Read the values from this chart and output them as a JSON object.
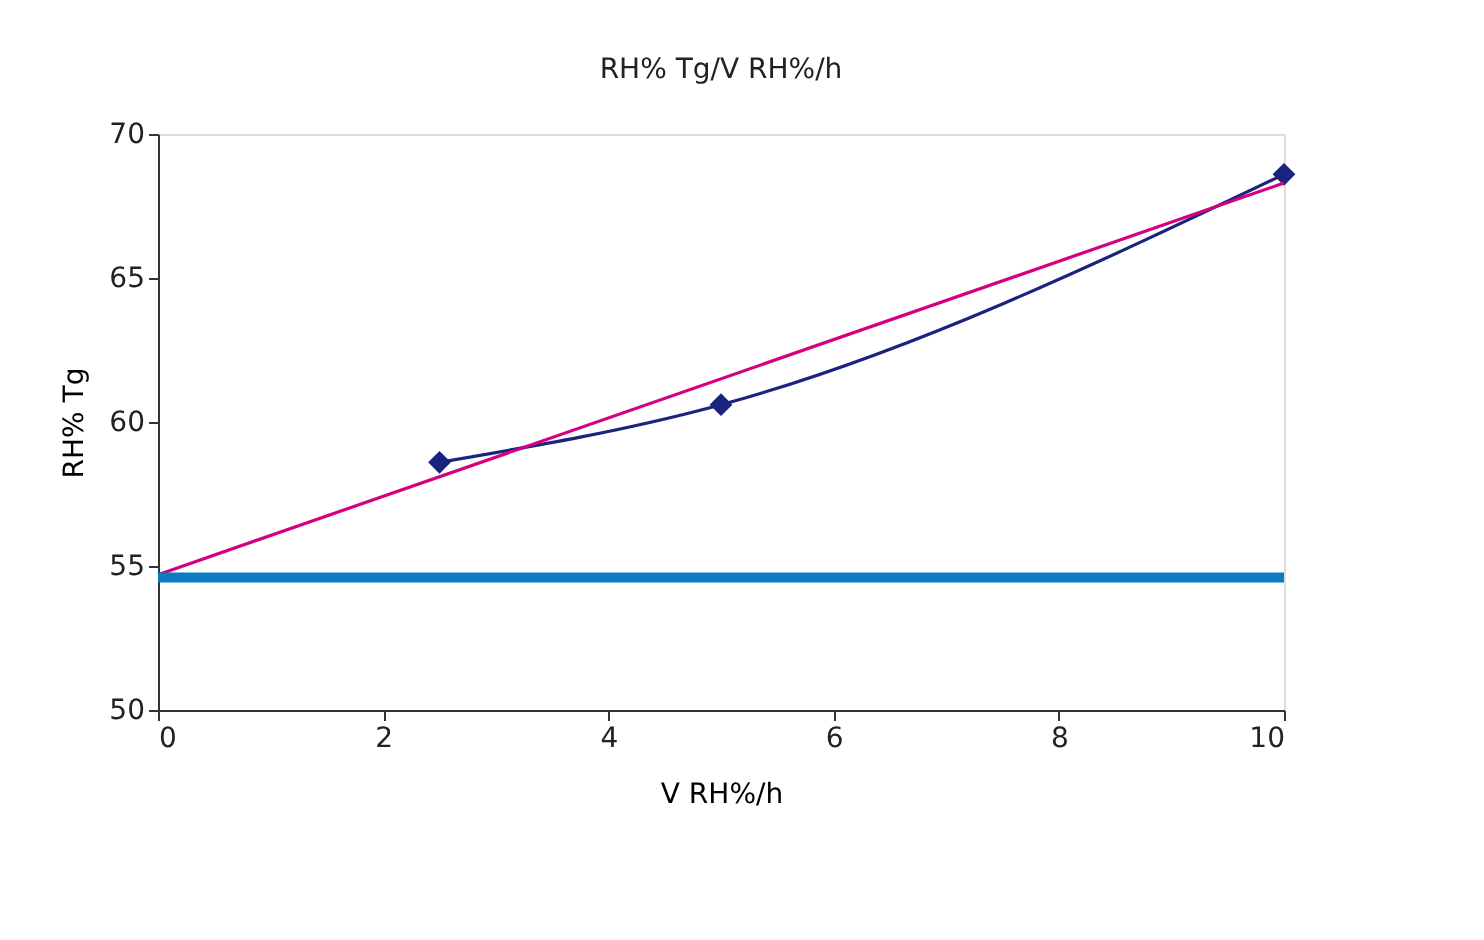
{
  "chart_data": {
    "type": "line",
    "title": "RH% Tg/V RH%/h",
    "xlabel": "V RH%/h",
    "ylabel": "RH% Tg",
    "xlim": [
      0,
      10
    ],
    "xticks": [
      0,
      2,
      4,
      6,
      8,
      10
    ],
    "ylim": [
      50,
      70
    ],
    "yticks": [
      50,
      55,
      60,
      65,
      70
    ],
    "grid": false,
    "series": [
      {
        "color": "#1a237e",
        "marker": "diamond",
        "x": [
          2.5,
          5,
          10
        ],
        "values": [
          58.6,
          60.6,
          68.6
        ]
      },
      {
        "color": "#d4007f",
        "marker": "none",
        "x": [
          0,
          10
        ],
        "values": [
          54.7,
          68.3
        ]
      }
    ],
    "ref_lines": [
      {
        "axis": "y",
        "value": 54.6,
        "color": "#0a7cc4"
      }
    ]
  }
}
